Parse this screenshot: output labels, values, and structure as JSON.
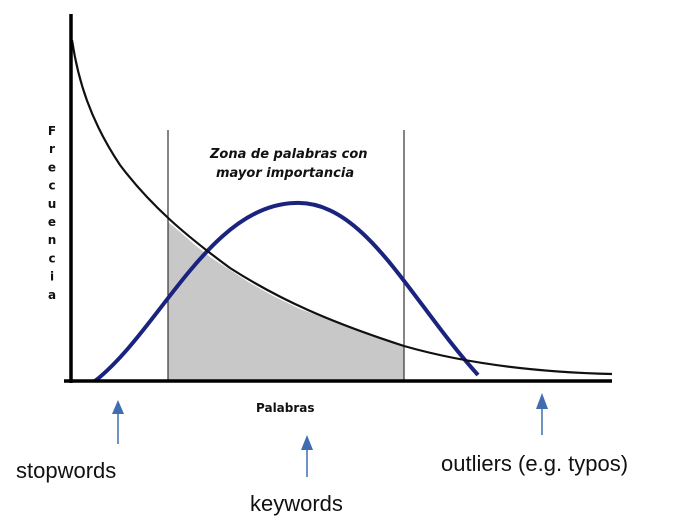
{
  "diagram": {
    "y_axis_label": "Frecuencia",
    "x_axis_label": "Palabras",
    "zone_label_line1": "Zona de palabras con",
    "zone_label_line2": "mayor importancia",
    "colors": {
      "axis": "#000000",
      "zipf_curve": "#111111",
      "importance_curve": "#1a237e",
      "shaded_area": "#c8c8c8",
      "arrow": "#3f6db0"
    }
  },
  "markers": [
    {
      "label": "stopwords"
    },
    {
      "label": "keywords"
    },
    {
      "label": "outliers (e.g. typos)"
    }
  ]
}
